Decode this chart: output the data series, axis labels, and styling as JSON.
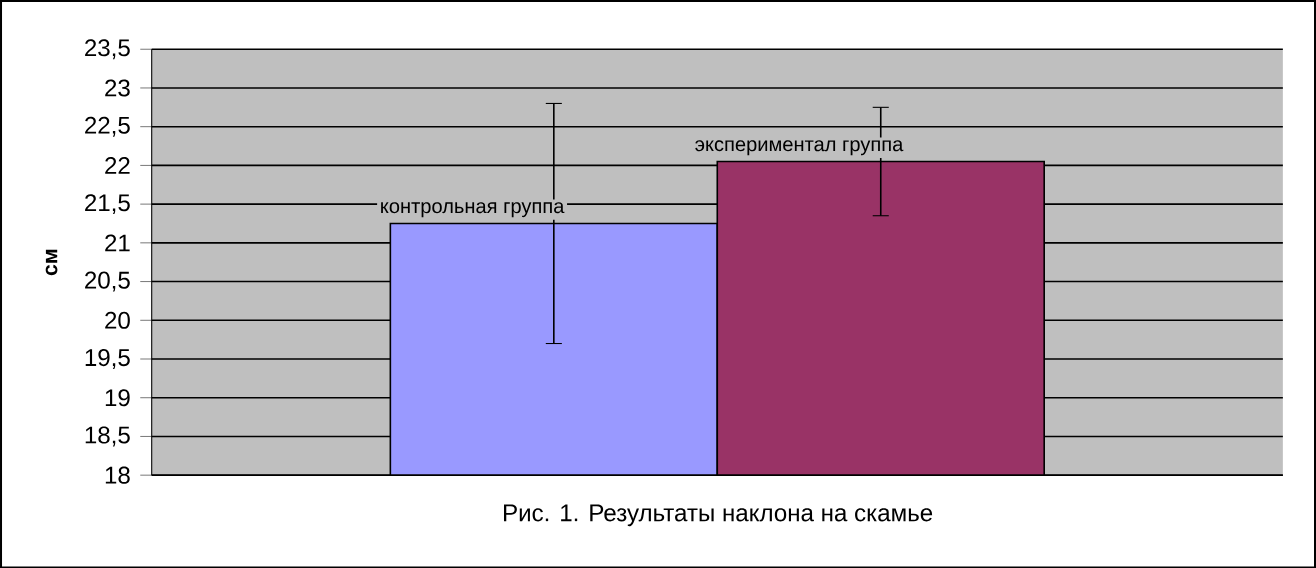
{
  "chart_data": {
    "type": "bar",
    "title": "Рис. 1. Результаты  наклона на скамье",
    "ylabel": "см",
    "categories": [
      "контрольная группа",
      "экспериментал группа"
    ],
    "values": [
      21.25,
      22.05
    ],
    "errors": [
      1.55,
      0.7
    ],
    "colors": [
      "#9999ff",
      "#993366"
    ],
    "ylim": [
      18,
      23.5
    ],
    "yticks": [
      18,
      {
        "value": 18.5,
        "label": "18,5"
      },
      19,
      {
        "value": 19.5,
        "label": "19,5"
      },
      20,
      {
        "value": 20.5,
        "label": "20,5"
      },
      21,
      {
        "value": 21.5,
        "label": "21,5"
      },
      22,
      {
        "value": 22.5,
        "label": "22,5"
      },
      23,
      {
        "value": 23.5,
        "label": "23,5"
      }
    ],
    "grid": "y"
  }
}
